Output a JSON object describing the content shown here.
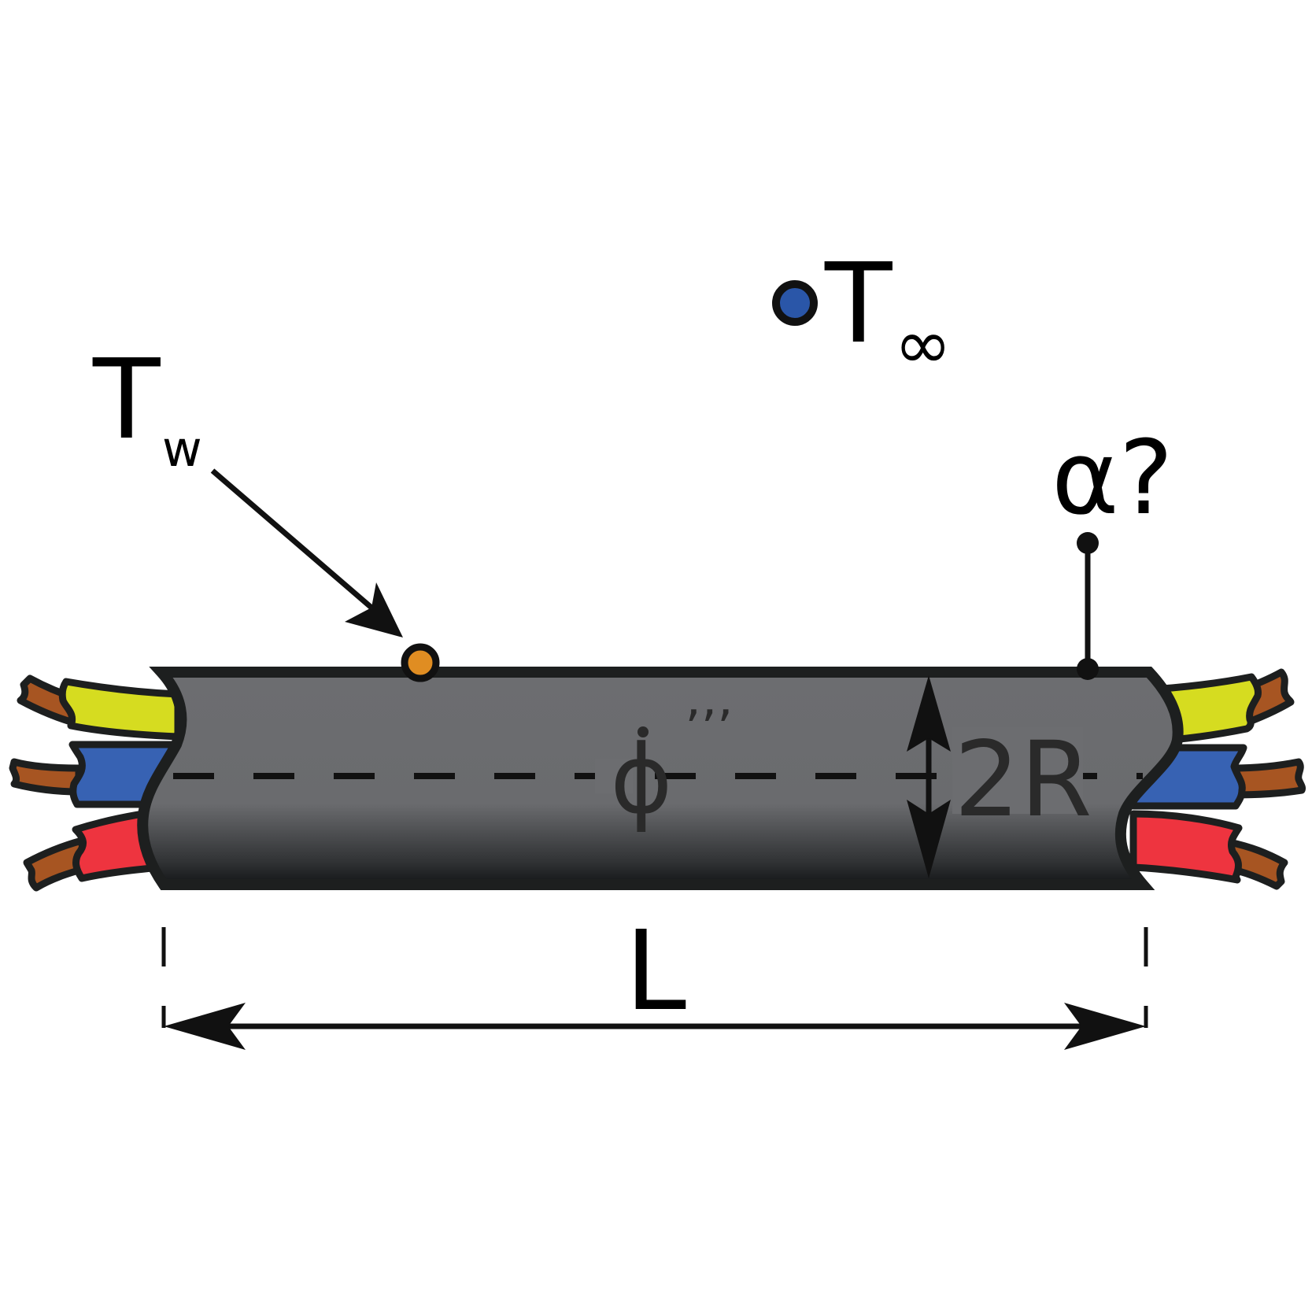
{
  "labels": {
    "t_wall": "T",
    "t_wall_sub": "w",
    "t_ambient": "T",
    "t_ambient_sub": "∞",
    "alpha": "α?",
    "heat_gen": "ϕ",
    "heat_gen_primes": "’’’",
    "diameter": "2R",
    "length": "L"
  },
  "colors": {
    "cable_top": "#6c6d70",
    "cable_bottom": "#141617",
    "outline": "#1d1f1f",
    "wire_yellow": "#d6dc20",
    "wire_blue": "#3762b3",
    "wire_red": "#ee343f",
    "wire_brown": "#a75522",
    "sensor_wall": "#e08d22",
    "sensor_ambient": "#2a56a8"
  }
}
